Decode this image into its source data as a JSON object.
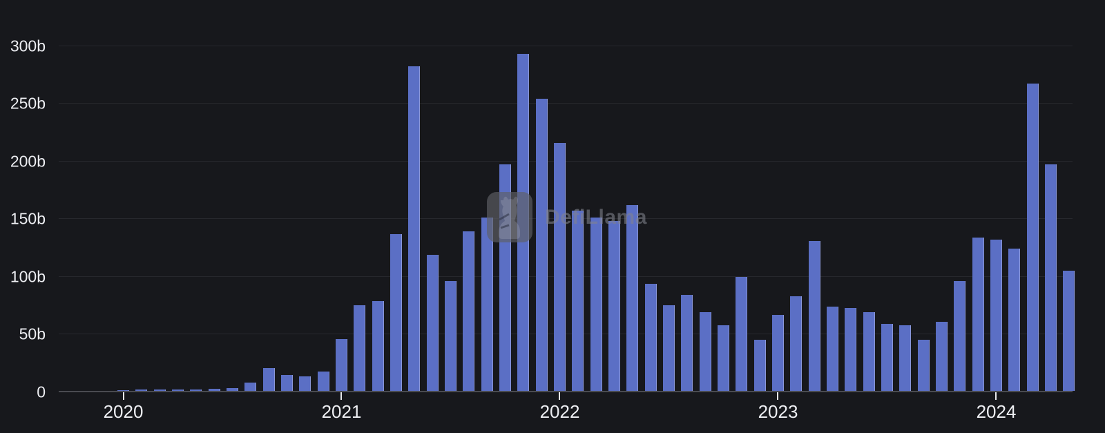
{
  "chart_data": {
    "type": "bar",
    "x": [
      "2020-01",
      "2020-02",
      "2020-03",
      "2020-04",
      "2020-05",
      "2020-06",
      "2020-07",
      "2020-08",
      "2020-09",
      "2020-10",
      "2020-11",
      "2020-12",
      "2021-01",
      "2021-02",
      "2021-03",
      "2021-04",
      "2021-05",
      "2021-06",
      "2021-07",
      "2021-08",
      "2021-09",
      "2021-10",
      "2021-11",
      "2021-12",
      "2022-01",
      "2022-02",
      "2022-03",
      "2022-04",
      "2022-05",
      "2022-06",
      "2022-07",
      "2022-08",
      "2022-09",
      "2022-10",
      "2022-11",
      "2022-12",
      "2023-01",
      "2023-02",
      "2023-03",
      "2023-04",
      "2023-05",
      "2023-06",
      "2023-07",
      "2023-08",
      "2023-09",
      "2023-10",
      "2023-11",
      "2023-12",
      "2024-01",
      "2024-02",
      "2024-03",
      "2024-04",
      "2024-05"
    ],
    "values": [
      0.3,
      1.2,
      1.3,
      1.0,
      1.2,
      1.8,
      2.6,
      7,
      20,
      13.5,
      12.7,
      16.7,
      45,
      74,
      78,
      136,
      281,
      118,
      95,
      138,
      150,
      196,
      292,
      253,
      215,
      156,
      150,
      147,
      161,
      93,
      74,
      83,
      68,
      57,
      99,
      44,
      66,
      82,
      130,
      73,
      72,
      68,
      58,
      57,
      44,
      60,
      95,
      133,
      131,
      123,
      266,
      196,
      104
    ],
    "value_unit_suffix": "b",
    "y_ticks": [
      {
        "value": 0,
        "label": "0"
      },
      {
        "value": 50,
        "label": "50b"
      },
      {
        "value": 100,
        "label": "100b"
      },
      {
        "value": 150,
        "label": "150b"
      },
      {
        "value": 200,
        "label": "200b"
      },
      {
        "value": 250,
        "label": "250b"
      },
      {
        "value": 300,
        "label": "300b"
      }
    ],
    "x_year_ticks": [
      "2020",
      "2021",
      "2022",
      "2023",
      "2024"
    ],
    "ylim": [
      0,
      300
    ],
    "grid": true,
    "legend": false,
    "bar_color": "#5b6fc5"
  },
  "watermark": {
    "icon": "defillama-llama-icon",
    "text": "DefiLlama"
  },
  "colors": {
    "background": "#17181c",
    "bar": "#5b6fc5",
    "bar_highlight": "#8a97d8",
    "gridline": "#27282d",
    "axis_line": "#4a4b51",
    "tick": "#e8e9ec",
    "label": "#edeef2"
  }
}
